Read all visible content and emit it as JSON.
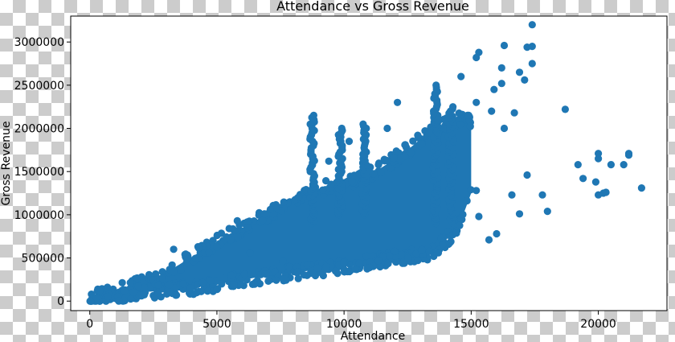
{
  "chart_data": {
    "type": "scatter",
    "title": "Attendance vs Gross Revenue",
    "xlabel": "Attendance",
    "ylabel": "Gross Revenue",
    "xlim": [
      -750,
      22700
    ],
    "ylim": [
      -110000,
      3300000
    ],
    "xticks": [
      0,
      5000,
      10000,
      15000,
      20000
    ],
    "yticks": [
      0,
      500000,
      1000000,
      1500000,
      2000000,
      2500000,
      3000000
    ],
    "xtick_labels": [
      "0",
      "5000",
      "10000",
      "15000",
      "20000"
    ],
    "ytick_labels": [
      "0",
      "500000",
      "1000000",
      "1500000",
      "2000000",
      "2500000",
      "3000000"
    ],
    "marker_color": "#1f77b4",
    "grid": false,
    "envelope_lower": [
      [
        0,
        0
      ],
      [
        2000,
        100000
      ],
      [
        4000,
        150000
      ],
      [
        6000,
        250000
      ],
      [
        8000,
        330000
      ],
      [
        10000,
        400000
      ],
      [
        12000,
        500000
      ],
      [
        13500,
        560000
      ],
      [
        14500,
        850000
      ],
      [
        15000,
        1250000
      ]
    ],
    "envelope_upper": [
      [
        0,
        50000
      ],
      [
        1500,
        150000
      ],
      [
        3000,
        330000
      ],
      [
        4500,
        600000
      ],
      [
        6000,
        850000
      ],
      [
        7000,
        1000000
      ],
      [
        8000,
        1150000
      ],
      [
        9000,
        1300000
      ],
      [
        10500,
        1400000
      ],
      [
        11500,
        1550000
      ],
      [
        12500,
        1750000
      ],
      [
        13500,
        2000000
      ],
      [
        14500,
        2100000
      ],
      [
        15000,
        1500000
      ],
      [
        15000,
        1250000
      ]
    ],
    "vertical_streaks": [
      {
        "x": 8750,
        "y_min": 900000,
        "y_max": 2150000
      },
      {
        "x": 9850,
        "y_min": 1000000,
        "y_max": 2000000
      },
      {
        "x": 10800,
        "y_min": 1000000,
        "y_max": 2050000
      },
      {
        "x": 13600,
        "y_min": 900000,
        "y_max": 2500000
      },
      {
        "x": 14200,
        "y_min": 900000,
        "y_max": 2250000
      }
    ],
    "outliers": [
      [
        17400,
        3200000
      ],
      [
        16300,
        2960000
      ],
      [
        17200,
        2940000
      ],
      [
        17400,
        2950000
      ],
      [
        15300,
        2880000
      ],
      [
        15200,
        2820000
      ],
      [
        16200,
        2700000
      ],
      [
        17400,
        2750000
      ],
      [
        16200,
        2520000
      ],
      [
        16900,
        2650000
      ],
      [
        17100,
        2560000
      ],
      [
        14600,
        2600000
      ],
      [
        15200,
        2300000
      ],
      [
        15900,
        2450000
      ],
      [
        12100,
        2300000
      ],
      [
        15800,
        2200000
      ],
      [
        16700,
        2180000
      ],
      [
        18700,
        2220000
      ],
      [
        16300,
        2000000
      ],
      [
        17200,
        1460000
      ],
      [
        16600,
        1230000
      ],
      [
        16900,
        1010000
      ],
      [
        17800,
        1230000
      ],
      [
        18000,
        1040000
      ],
      [
        16000,
        780000
      ],
      [
        15200,
        1280000
      ],
      [
        15300,
        980000
      ],
      [
        15700,
        710000
      ],
      [
        19200,
        1580000
      ],
      [
        19400,
        1420000
      ],
      [
        19900,
        1380000
      ],
      [
        20000,
        1650000
      ],
      [
        20000,
        1710000
      ],
      [
        20000,
        1230000
      ],
      [
        20200,
        1250000
      ],
      [
        20300,
        1260000
      ],
      [
        20500,
        1580000
      ],
      [
        21000,
        1580000
      ],
      [
        21200,
        1690000
      ],
      [
        21200,
        1710000
      ],
      [
        21700,
        1310000
      ],
      [
        14900,
        2150000
      ],
      [
        13700,
        2100000
      ],
      [
        12900,
        1920000
      ],
      [
        11700,
        2000000
      ],
      [
        10200,
        1850000
      ],
      [
        9400,
        1620000
      ],
      [
        7100,
        1060000
      ],
      [
        5800,
        930000
      ],
      [
        6300,
        560000
      ],
      [
        7600,
        460000
      ],
      [
        3300,
        600000
      ]
    ]
  }
}
